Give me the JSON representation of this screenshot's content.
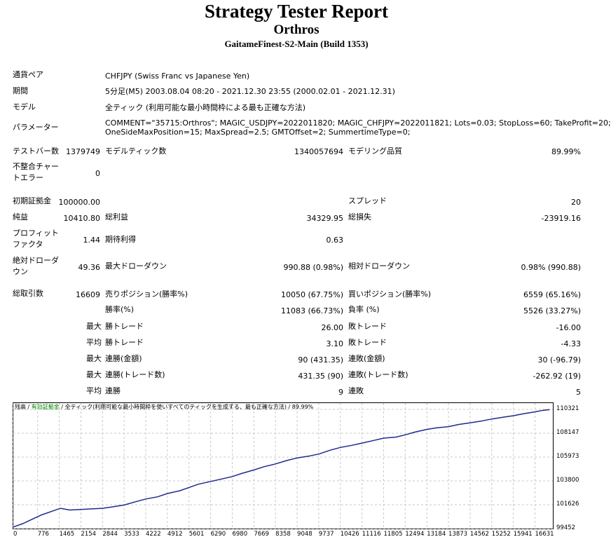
{
  "header": {
    "title": "Strategy Tester Report",
    "subtitle": "Orthros",
    "server": "GaitameFinest-S2-Main (Build 1353)"
  },
  "info": {
    "symbol_label": "通貨ペア",
    "symbol_value": "CHFJPY (Swiss Franc vs Japanese Yen)",
    "period_label": "期間",
    "period_value": "5分足(M5) 2003.08.04 08:20 - 2021.12.30 23:55 (2000.02.01 - 2021.12.31)",
    "model_label": "モデル",
    "model_value": "全ティック (利用可能な最小時間枠による最も正確な方法)",
    "params_label": "パラメーター",
    "params_line1": "COMMENT=\"35715:Orthros\"; MAGIC_USDJPY=2022011820; MAGIC_CHFJPY=2022011821; Lots=0.03; StopLoss=60; TakeProfit=20;",
    "params_line2": "OneSideMaxPosition=15; MaxSpread=2.5; GMTOffset=2; SummertimeType=0;"
  },
  "stats": {
    "bars_label": "テストバー数",
    "bars_value": "1379749",
    "ticks_label": "モデルティック数",
    "ticks_value": "1340057694",
    "quality_label": "モデリング品質",
    "quality_value": "89.99%",
    "mismatch_label_1": "不整合チャー",
    "mismatch_label_2": "トエラー",
    "mismatch_value": "0",
    "deposit_label": "初期証拠金",
    "deposit_value": "100000.00",
    "spread_label": "スプレッド",
    "spread_value": "20",
    "net_label": "純益",
    "net_value": "10410.80",
    "gross_profit_label": "総利益",
    "gross_profit_value": "34329.95",
    "gross_loss_label": "総損失",
    "gross_loss_value": "-23919.16",
    "pf_label_1": "プロフィット",
    "pf_label_2": "ファクタ",
    "pf_value": "1.44",
    "expected_label": "期待利得",
    "expected_value": "0.63",
    "abs_dd_label_1": "絶対ドローダ",
    "abs_dd_label_2": "ウン",
    "abs_dd_value": "49.36",
    "max_dd_label": "最大ドローダウン",
    "max_dd_value": "990.88 (0.98%)",
    "rel_dd_label": "相対ドローダウン",
    "rel_dd_value": "0.98% (990.88)",
    "total_trades_label": "総取引数",
    "total_trades_value": "16609",
    "short_label": "売りポジション(勝率%)",
    "short_value": "10050 (67.75%)",
    "long_label": "買いポジション(勝率%)",
    "long_value": "6559 (65.16%)",
    "win_rate_label": "勝率(%)",
    "win_rate_value": "11083 (66.73%)",
    "loss_rate_label": "負率 (%)",
    "loss_rate_value": "5526 (33.27%)",
    "largest_label": "最大",
    "largest_win_label": "勝トレード",
    "largest_win_value": "26.00",
    "largest_loss_label": "敗トレード",
    "largest_loss_value": "-16.00",
    "average_label": "平均",
    "avg_win_label": "勝トレード",
    "avg_win_value": "3.10",
    "avg_loss_label": "敗トレード",
    "avg_loss_value": "-4.33",
    "max1_label": "最大",
    "max_consec_wins_label": "連勝(金額)",
    "max_consec_wins_value": "90 (431.35)",
    "max_consec_losses_label": "連敗(金額)",
    "max_consec_losses_value": "30 (-96.79)",
    "max2_label": "最大",
    "max_consec_profit_label": "連勝(トレード数)",
    "max_consec_profit_value": "431.35 (90)",
    "max_consec_loss_label": "連敗(トレード数)",
    "max_consec_loss_value": "-262.92 (19)",
    "avg2_label": "平均",
    "avg_consec_wins_label": "連勝",
    "avg_consec_wins_value": "9",
    "avg_consec_losses_label": "連敗",
    "avg_consec_losses_value": "5"
  },
  "chart_legend": {
    "balance": "残高",
    "sep1": " / ",
    "equity": "有効証拠金",
    "sep2": " / ",
    "model": "全ティック(利用可能な最小時間枠を使いすべてのティックを生成する、最も正確な方法)",
    "sep3": " / ",
    "quality": "89.99%"
  },
  "colors": {
    "balance_line": "#1e2a8c",
    "equity_text": "#008000",
    "grid": "#c8c8c8"
  },
  "chart_data": {
    "type": "line",
    "title": "",
    "xlabel": "",
    "ylabel": "",
    "xlim": [
      0,
      17200
    ],
    "ylim": [
      99452,
      110900
    ],
    "x_ticks": [
      0,
      776,
      1465,
      2154,
      2844,
      3533,
      4222,
      4912,
      5601,
      6290,
      6980,
      7669,
      8358,
      9048,
      9737,
      10426,
      11116,
      11805,
      12494,
      13184,
      13873,
      14562,
      15252,
      15941,
      16631
    ],
    "y_ticks": [
      99452,
      101626,
      103800,
      105973,
      108147,
      110321
    ],
    "series": [
      {
        "x": [
          0,
          300,
          600,
          900,
          1200,
          1500,
          1800,
          2154,
          2500,
          2844,
          3200,
          3533,
          3900,
          4222,
          4600,
          4912,
          5300,
          5601,
          5900,
          6290,
          6600,
          6980,
          7300,
          7669,
          8000,
          8358,
          8700,
          9048,
          9400,
          9737,
          10100,
          10426,
          10800,
          11116,
          11500,
          11805,
          12200,
          12494,
          12800,
          13184,
          13500,
          13873,
          14200,
          14562,
          14900,
          15252,
          15600,
          15941,
          16300,
          16631,
          16900,
          17100
        ],
        "values": [
          99600,
          99900,
          100300,
          100700,
          101000,
          101300,
          101150,
          101200,
          101250,
          101300,
          101450,
          101600,
          101900,
          102150,
          102350,
          102650,
          102900,
          103200,
          103500,
          103750,
          103950,
          104200,
          104500,
          104800,
          105100,
          105350,
          105650,
          105900,
          106050,
          106250,
          106600,
          106850,
          107050,
          107250,
          107500,
          107700,
          107800,
          108000,
          108250,
          108500,
          108650,
          108750,
          108950,
          109100,
          109250,
          109450,
          109600,
          109750,
          109950,
          110100,
          110250,
          110300
        ]
      }
    ]
  }
}
